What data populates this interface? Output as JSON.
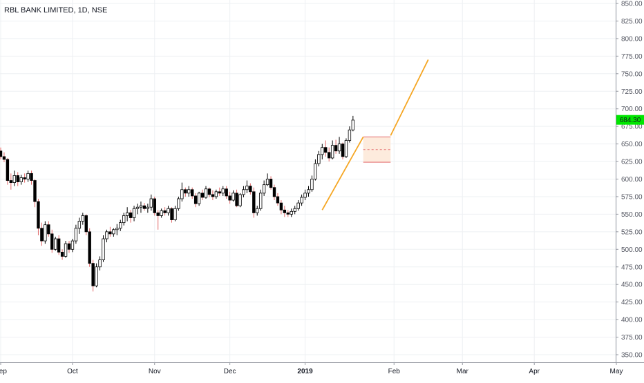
{
  "chart_data": {
    "type": "candlestick",
    "title": "RBL BANK LIMITED, 1D, NSE",
    "last_price_label": "684.30",
    "ylim": [
      340,
      855
    ],
    "y_ticks": [
      "850.00",
      "825.00",
      "800.00",
      "775.00",
      "750.00",
      "725.00",
      "700.00",
      "675.00",
      "650.00",
      "625.00",
      "600.00",
      "575.00",
      "550.00",
      "525.00",
      "500.00",
      "475.00",
      "450.00",
      "425.00",
      "400.00",
      "375.00",
      "350.00"
    ],
    "x_ticks": [
      {
        "label": "Sep",
        "bar": 0
      },
      {
        "label": "Oct",
        "bar": 21
      },
      {
        "label": "Nov",
        "bar": 45
      },
      {
        "label": "Dec",
        "bar": 67
      },
      {
        "label": "2019",
        "bar": 89
      },
      {
        "label": "Feb",
        "bar": 115
      },
      {
        "label": "Mar",
        "bar": 135
      },
      {
        "label": "Apr",
        "bar": 156
      },
      {
        "label": "May",
        "bar": 180
      }
    ],
    "colors": {
      "up": "#ffffff",
      "down": "#000000",
      "outline": "#000000",
      "wick_down": "#e06666",
      "wick_up": "#26a69a",
      "trend": "#f5a623",
      "channel": "#e57373",
      "channel_fill": "#fde8d7",
      "price_tag": "#00e600"
    },
    "candles": [
      [
        640,
        645,
        628,
        632
      ],
      [
        632,
        638,
        624,
        628
      ],
      [
        628,
        630,
        592,
        598
      ],
      [
        598,
        608,
        585,
        595
      ],
      [
        595,
        612,
        590,
        605
      ],
      [
        605,
        610,
        590,
        596
      ],
      [
        596,
        606,
        592,
        602
      ],
      [
        602,
        608,
        595,
        600
      ],
      [
        600,
        612,
        596,
        608
      ],
      [
        608,
        612,
        592,
        598
      ],
      [
        598,
        600,
        560,
        568
      ],
      [
        568,
        572,
        520,
        530
      ],
      [
        530,
        538,
        505,
        512
      ],
      [
        512,
        540,
        508,
        535
      ],
      [
        535,
        540,
        518,
        522
      ],
      [
        522,
        528,
        495,
        500
      ],
      [
        500,
        518,
        498,
        515
      ],
      [
        515,
        520,
        492,
        496
      ],
      [
        496,
        500,
        485,
        490
      ],
      [
        490,
        512,
        488,
        508
      ],
      [
        508,
        512,
        495,
        500
      ],
      [
        500,
        515,
        496,
        512
      ],
      [
        512,
        535,
        508,
        530
      ],
      [
        530,
        545,
        522,
        540
      ],
      [
        540,
        552,
        535,
        548
      ],
      [
        548,
        550,
        520,
        525
      ],
      [
        525,
        530,
        475,
        480
      ],
      [
        480,
        485,
        440,
        448
      ],
      [
        448,
        480,
        446,
        475
      ],
      [
        475,
        490,
        470,
        485
      ],
      [
        485,
        520,
        482,
        515
      ],
      [
        515,
        528,
        510,
        525
      ],
      [
        525,
        532,
        518,
        522
      ],
      [
        522,
        530,
        518,
        528
      ],
      [
        528,
        536,
        520,
        530
      ],
      [
        530,
        542,
        526,
        538
      ],
      [
        538,
        552,
        534,
        548
      ],
      [
        548,
        560,
        540,
        552
      ],
      [
        552,
        556,
        538,
        545
      ],
      [
        545,
        562,
        540,
        558
      ],
      [
        558,
        565,
        550,
        560
      ],
      [
        560,
        568,
        552,
        562
      ],
      [
        562,
        566,
        555,
        558
      ],
      [
        558,
        565,
        552,
        560
      ],
      [
        560,
        578,
        555,
        572
      ],
      [
        572,
        575,
        548,
        552
      ],
      [
        552,
        556,
        528,
        548
      ],
      [
        548,
        558,
        545,
        555
      ],
      [
        555,
        560,
        548,
        552
      ],
      [
        552,
        562,
        548,
        558
      ],
      [
        558,
        560,
        538,
        542
      ],
      [
        542,
        562,
        540,
        558
      ],
      [
        558,
        575,
        555,
        572
      ],
      [
        572,
        595,
        568,
        585
      ],
      [
        585,
        588,
        575,
        580
      ],
      [
        580,
        590,
        575,
        585
      ],
      [
        585,
        588,
        572,
        576
      ],
      [
        576,
        580,
        560,
        565
      ],
      [
        565,
        582,
        562,
        580
      ],
      [
        580,
        585,
        570,
        574
      ],
      [
        574,
        590,
        572,
        586
      ],
      [
        586,
        588,
        574,
        578
      ],
      [
        578,
        584,
        570,
        575
      ],
      [
        575,
        585,
        572,
        582
      ],
      [
        582,
        588,
        576,
        580
      ],
      [
        580,
        590,
        576,
        586
      ],
      [
        586,
        590,
        572,
        576
      ],
      [
        576,
        582,
        565,
        570
      ],
      [
        570,
        584,
        568,
        580
      ],
      [
        580,
        585,
        560,
        562
      ],
      [
        562,
        580,
        560,
        578
      ],
      [
        578,
        590,
        574,
        585
      ],
      [
        585,
        598,
        580,
        590
      ],
      [
        590,
        594,
        578,
        582
      ],
      [
        582,
        588,
        545,
        552
      ],
      [
        552,
        562,
        548,
        558
      ],
      [
        558,
        585,
        555,
        580
      ],
      [
        580,
        598,
        576,
        592
      ],
      [
        592,
        608,
        590,
        600
      ],
      [
        600,
        604,
        585,
        588
      ],
      [
        588,
        592,
        570,
        575
      ],
      [
        575,
        580,
        562,
        566
      ],
      [
        566,
        570,
        550,
        556
      ],
      [
        556,
        562,
        546,
        552
      ],
      [
        552,
        556,
        546,
        550
      ],
      [
        550,
        558,
        546,
        554
      ],
      [
        554,
        562,
        550,
        558
      ],
      [
        558,
        570,
        555,
        566
      ],
      [
        566,
        578,
        562,
        574
      ],
      [
        574,
        585,
        570,
        580
      ],
      [
        580,
        590,
        575,
        585
      ],
      [
        585,
        605,
        582,
        600
      ],
      [
        600,
        628,
        598,
        622
      ],
      [
        622,
        640,
        618,
        635
      ],
      [
        635,
        650,
        628,
        645
      ],
      [
        645,
        655,
        632,
        638
      ],
      [
        638,
        645,
        625,
        630
      ],
      [
        630,
        655,
        628,
        648
      ],
      [
        648,
        656,
        636,
        640
      ],
      [
        640,
        660,
        636,
        650
      ],
      [
        650,
        652,
        628,
        632
      ],
      [
        632,
        658,
        630,
        655
      ],
      [
        655,
        675,
        652,
        670
      ],
      [
        670,
        690,
        668,
        684
      ]
    ],
    "trend_lines": [
      {
        "from": [
          94,
          556
        ],
        "to": [
          106,
          660
        ]
      },
      {
        "from": [
          114,
          662
        ],
        "to": [
          125,
          770
        ]
      }
    ],
    "channel": {
      "from_bar": 106,
      "to_bar": 114,
      "upper": 660,
      "lower": 624,
      "mid": 642
    }
  }
}
